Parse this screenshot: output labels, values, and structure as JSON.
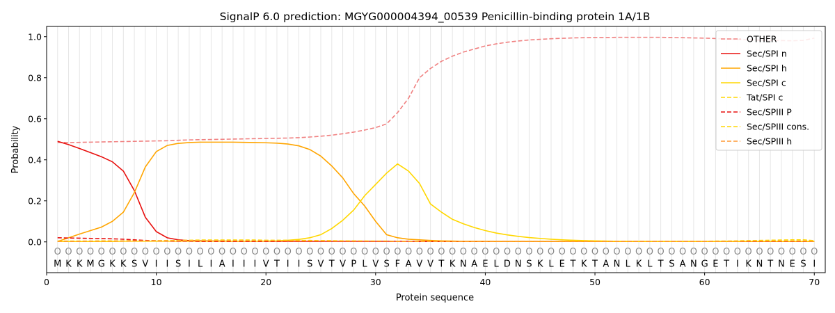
{
  "chart_data": {
    "type": "line",
    "title": "SignalP 6.0 prediction: MGYG000004394_00539 Penicillin-binding protein 1A/1B",
    "xlabel": "Protein sequence",
    "ylabel": "Probability",
    "xlim": [
      0,
      71
    ],
    "ylim": [
      -0.15,
      1.05
    ],
    "x_ticks": [
      0,
      10,
      20,
      30,
      40,
      50,
      60,
      70
    ],
    "y_ticks": [
      0.0,
      0.2,
      0.4,
      0.6,
      0.8,
      1.0
    ],
    "x_tick_labels": [
      "0",
      "10",
      "20",
      "30",
      "40",
      "50",
      "60",
      "70"
    ],
    "y_tick_labels": [
      "0.0",
      "0.2",
      "0.4",
      "0.6",
      "0.8",
      "1.0"
    ],
    "grid": "vertical lines at each residue",
    "legend_position": "top-right",
    "sequence": [
      "M",
      "K",
      "K",
      "M",
      "G",
      "K",
      "K",
      "S",
      "V",
      "I",
      "I",
      "S",
      "I",
      "L",
      "I",
      "A",
      "I",
      "I",
      "I",
      "V",
      "T",
      "I",
      "I",
      "S",
      "V",
      "T",
      "V",
      "P",
      "L",
      "V",
      "S",
      "F",
      "A",
      "V",
      "V",
      "T",
      "K",
      "N",
      "A",
      "E",
      "L",
      "D",
      "N",
      "S",
      "K",
      "L",
      "E",
      "T",
      "K",
      "T",
      "A",
      "N",
      "L",
      "K",
      "L",
      "T",
      "S",
      "A",
      "N",
      "G",
      "E",
      "T",
      "I",
      "K",
      "N",
      "T",
      "N",
      "E",
      "S",
      "I"
    ],
    "region_marker": "O",
    "series": [
      {
        "name": "OTHER",
        "color": "#f08080",
        "dash": true,
        "values": [
          0.485,
          0.484,
          0.485,
          0.486,
          0.487,
          0.488,
          0.489,
          0.49,
          0.491,
          0.492,
          0.493,
          0.495,
          0.497,
          0.498,
          0.499,
          0.5,
          0.501,
          0.502,
          0.503,
          0.504,
          0.505,
          0.506,
          0.508,
          0.511,
          0.515,
          0.52,
          0.527,
          0.535,
          0.545,
          0.557,
          0.575,
          0.63,
          0.7,
          0.8,
          0.845,
          0.88,
          0.905,
          0.925,
          0.94,
          0.955,
          0.965,
          0.973,
          0.979,
          0.984,
          0.987,
          0.99,
          0.992,
          0.994,
          0.995,
          0.996,
          0.996,
          0.997,
          0.997,
          0.997,
          0.997,
          0.997,
          0.996,
          0.995,
          0.994,
          0.993,
          0.991,
          0.989,
          0.987,
          0.985,
          0.983,
          0.982,
          0.981,
          0.98,
          0.982,
          0.993
        ]
      },
      {
        "name": "Sec/SPI n",
        "color": "#e8100e",
        "dash": false,
        "values": [
          0.49,
          0.474,
          0.455,
          0.435,
          0.415,
          0.39,
          0.345,
          0.25,
          0.12,
          0.05,
          0.02,
          0.01,
          0.006,
          0.005,
          0.004,
          0.004,
          0.003,
          0.003,
          0.003,
          0.003,
          0.003,
          0.003,
          0.003,
          0.003,
          0.003,
          0.003,
          0.003,
          0.003,
          0.003,
          0.003,
          0.003,
          0.003,
          0.003,
          0.002,
          0.002,
          0.002,
          0.002,
          0.002,
          0.002,
          0.002,
          0.002,
          0.002,
          0.002,
          0.002,
          0.002,
          0.002,
          0.002,
          0.002,
          0.002,
          0.002,
          0.002,
          0.002,
          0.002,
          0.002,
          0.002,
          0.002,
          0.002,
          0.002,
          0.002,
          0.002,
          0.002,
          0.002,
          0.002,
          0.002,
          0.002,
          0.002,
          0.002,
          0.002,
          0.002,
          0.002
        ]
      },
      {
        "name": "Sec/SPI h",
        "color": "#ffa500",
        "dash": false,
        "values": [
          0.002,
          0.02,
          0.038,
          0.055,
          0.072,
          0.1,
          0.145,
          0.24,
          0.365,
          0.44,
          0.47,
          0.48,
          0.484,
          0.486,
          0.486,
          0.486,
          0.486,
          0.485,
          0.484,
          0.483,
          0.481,
          0.477,
          0.468,
          0.45,
          0.418,
          0.37,
          0.312,
          0.235,
          0.175,
          0.1,
          0.035,
          0.02,
          0.013,
          0.01,
          0.007,
          0.005,
          0.004,
          0.003,
          0.003,
          0.003,
          0.002,
          0.002,
          0.002,
          0.002,
          0.002,
          0.002,
          0.002,
          0.002,
          0.002,
          0.002,
          0.002,
          0.002,
          0.002,
          0.002,
          0.002,
          0.002,
          0.002,
          0.002,
          0.002,
          0.002,
          0.002,
          0.002,
          0.002,
          0.002,
          0.002,
          0.002,
          0.002,
          0.002,
          0.002,
          0.002
        ]
      },
      {
        "name": "Sec/SPI c",
        "color": "#ffd700",
        "dash": false,
        "values": [
          0.002,
          0.002,
          0.002,
          0.002,
          0.002,
          0.002,
          0.003,
          0.003,
          0.003,
          0.003,
          0.003,
          0.003,
          0.003,
          0.003,
          0.003,
          0.003,
          0.003,
          0.003,
          0.003,
          0.004,
          0.005,
          0.008,
          0.012,
          0.02,
          0.035,
          0.065,
          0.105,
          0.155,
          0.225,
          0.28,
          0.335,
          0.38,
          0.345,
          0.285,
          0.185,
          0.145,
          0.11,
          0.088,
          0.07,
          0.055,
          0.043,
          0.034,
          0.027,
          0.021,
          0.017,
          0.013,
          0.01,
          0.008,
          0.006,
          0.005,
          0.004,
          0.003,
          0.003,
          0.002,
          0.002,
          0.002,
          0.002,
          0.002,
          0.002,
          0.002,
          0.002,
          0.002,
          0.002,
          0.002,
          0.002,
          0.002,
          0.002,
          0.002,
          0.002,
          0.002
        ]
      },
      {
        "name": "Tat/SPI c",
        "color": "#ffd700",
        "dash": true,
        "values": [
          0.004,
          0.004,
          0.004,
          0.004,
          0.005,
          0.005,
          0.005,
          0.006,
          0.006,
          0.006,
          0.006,
          0.006,
          0.006,
          0.006,
          0.006,
          0.006,
          0.006,
          0.006,
          0.005,
          0.005,
          0.005,
          0.005,
          0.005,
          0.005,
          0.005,
          0.004,
          0.004,
          0.004,
          0.004,
          0.003,
          0.003,
          0.003,
          0.003,
          0.003,
          0.003,
          0.003,
          0.002,
          0.002,
          0.002,
          0.002,
          0.002,
          0.002,
          0.002,
          0.002,
          0.002,
          0.002,
          0.002,
          0.002,
          0.002,
          0.002,
          0.002,
          0.002,
          0.002,
          0.002,
          0.002,
          0.002,
          0.002,
          0.002,
          0.002,
          0.002,
          0.002,
          0.002,
          0.003,
          0.003,
          0.003,
          0.003,
          0.004,
          0.004,
          0.004,
          0.004
        ]
      },
      {
        "name": "Sec/SPIII P",
        "color": "#e8100e",
        "dash": true,
        "values": [
          0.02,
          0.019,
          0.018,
          0.017,
          0.016,
          0.015,
          0.013,
          0.01,
          0.007,
          0.005,
          0.004,
          0.003,
          0.003,
          0.002,
          0.002,
          0.002,
          0.002,
          0.002,
          0.002,
          0.002,
          0.002,
          0.002,
          0.002,
          0.002,
          0.002,
          0.002,
          0.002,
          0.002,
          0.002,
          0.002,
          0.002,
          0.002,
          0.002,
          0.002,
          0.002,
          0.002,
          0.002,
          0.002,
          0.002,
          0.002,
          0.002,
          0.002,
          0.002,
          0.002,
          0.002,
          0.002,
          0.002,
          0.002,
          0.002,
          0.002,
          0.002,
          0.002,
          0.002,
          0.002,
          0.002,
          0.002,
          0.002,
          0.002,
          0.002,
          0.002,
          0.002,
          0.002,
          0.002,
          0.002,
          0.002,
          0.002,
          0.002,
          0.002,
          0.002,
          0.002
        ]
      },
      {
        "name": "Sec/SPIII cons.",
        "color": "#ffd700",
        "dash": true,
        "values": [
          0.003,
          0.003,
          0.003,
          0.003,
          0.003,
          0.003,
          0.003,
          0.004,
          0.004,
          0.005,
          0.006,
          0.007,
          0.008,
          0.009,
          0.009,
          0.009,
          0.009,
          0.009,
          0.009,
          0.008,
          0.008,
          0.008,
          0.007,
          0.007,
          0.006,
          0.006,
          0.005,
          0.005,
          0.004,
          0.004,
          0.004,
          0.003,
          0.003,
          0.003,
          0.003,
          0.003,
          0.003,
          0.003,
          0.003,
          0.003,
          0.003,
          0.003,
          0.003,
          0.003,
          0.003,
          0.003,
          0.003,
          0.003,
          0.003,
          0.003,
          0.003,
          0.003,
          0.003,
          0.003,
          0.003,
          0.003,
          0.003,
          0.003,
          0.003,
          0.003,
          0.004,
          0.004,
          0.005,
          0.006,
          0.007,
          0.008,
          0.009,
          0.01,
          0.01,
          0.006
        ]
      },
      {
        "name": "Sec/SPIII h",
        "color": "#ff9933",
        "dash": true,
        "values": [
          0.002,
          0.002,
          0.002,
          0.003,
          0.003,
          0.003,
          0.004,
          0.004,
          0.005,
          0.005,
          0.005,
          0.005,
          0.005,
          0.005,
          0.005,
          0.005,
          0.005,
          0.005,
          0.005,
          0.005,
          0.005,
          0.004,
          0.004,
          0.004,
          0.004,
          0.003,
          0.003,
          0.003,
          0.003,
          0.003,
          0.003,
          0.002,
          0.002,
          0.002,
          0.002,
          0.002,
          0.002,
          0.002,
          0.002,
          0.002,
          0.002,
          0.002,
          0.002,
          0.002,
          0.002,
          0.002,
          0.002,
          0.002,
          0.002,
          0.002,
          0.002,
          0.002,
          0.002,
          0.002,
          0.002,
          0.002,
          0.002,
          0.002,
          0.002,
          0.002,
          0.002,
          0.002,
          0.002,
          0.003,
          0.003,
          0.003,
          0.003,
          0.003,
          0.003,
          0.002
        ]
      }
    ]
  }
}
